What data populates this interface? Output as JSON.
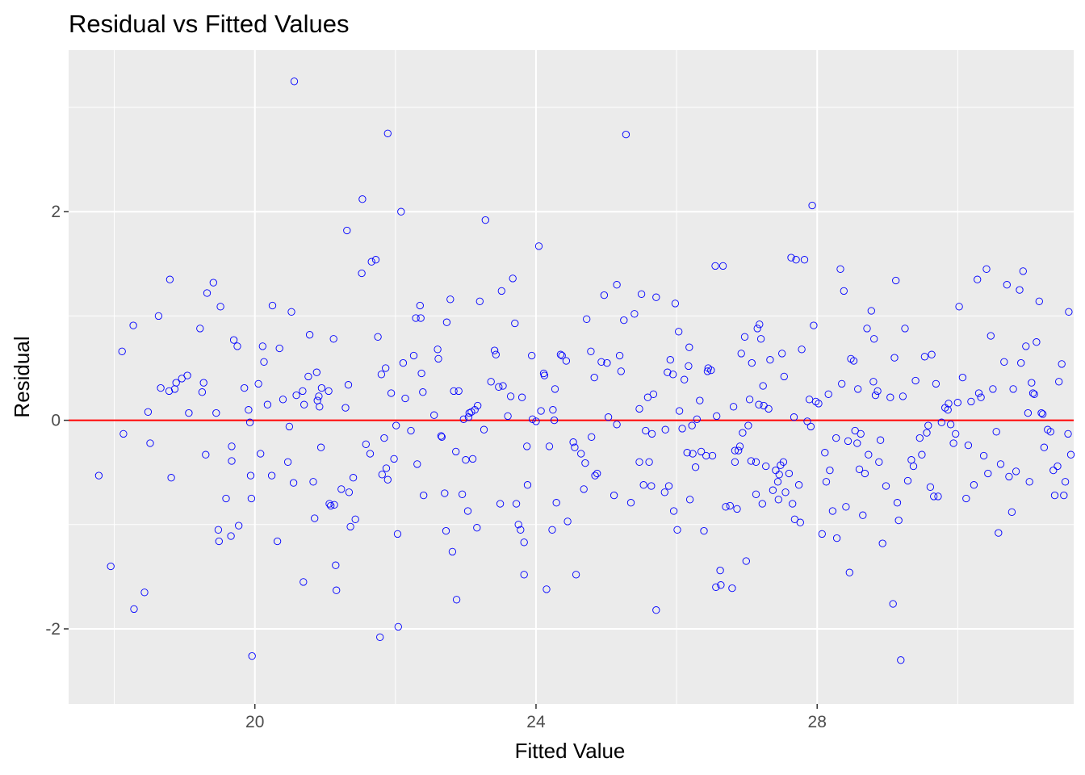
{
  "chart_data": {
    "type": "scatter",
    "title": "Residual vs Fitted Values",
    "xlabel": "Fitted Value",
    "ylabel": "Residual",
    "xlim": [
      17.35,
      31.65
    ],
    "ylim": [
      -2.72,
      3.55
    ],
    "x_ticks": [
      20,
      24,
      28
    ],
    "x_tick_labels": [
      "20",
      "24",
      "28"
    ],
    "y_ticks": [
      -2,
      0,
      2
    ],
    "y_tick_labels": [
      "-2",
      "0",
      "2"
    ],
    "grid": true,
    "reference_line": {
      "y": 0,
      "color": "#ff0000"
    },
    "point_color": "#0000ff",
    "panel_color": "#ebebeb",
    "points": [
      [
        17.78,
        -0.53
      ],
      [
        17.95,
        -1.4
      ],
      [
        18.11,
        0.66
      ],
      [
        18.13,
        -0.13
      ],
      [
        18.27,
        0.91
      ],
      [
        18.28,
        -1.81
      ],
      [
        18.43,
        -1.65
      ],
      [
        18.48,
        0.08
      ],
      [
        18.51,
        -0.22
      ],
      [
        18.63,
        1.0
      ],
      [
        18.66,
        0.31
      ],
      [
        18.78,
        0.28
      ],
      [
        18.79,
        1.35
      ],
      [
        18.81,
        -0.55
      ],
      [
        18.86,
        0.3
      ],
      [
        18.88,
        0.36
      ],
      [
        18.96,
        0.4
      ],
      [
        19.04,
        0.43
      ],
      [
        19.06,
        0.07
      ],
      [
        19.22,
        0.88
      ],
      [
        19.25,
        0.27
      ],
      [
        19.27,
        0.36
      ],
      [
        19.3,
        -0.33
      ],
      [
        19.32,
        1.22
      ],
      [
        19.41,
        1.32
      ],
      [
        19.45,
        0.07
      ],
      [
        19.48,
        -1.05
      ],
      [
        19.49,
        -1.16
      ],
      [
        19.51,
        1.09
      ],
      [
        19.59,
        -0.75
      ],
      [
        19.66,
        -1.11
      ],
      [
        19.67,
        -0.25
      ],
      [
        19.67,
        -0.39
      ],
      [
        19.7,
        0.77
      ],
      [
        19.75,
        0.71
      ],
      [
        19.77,
        -1.01
      ],
      [
        19.85,
        0.31
      ],
      [
        19.91,
        0.1
      ],
      [
        19.93,
        -0.02
      ],
      [
        19.94,
        -0.53
      ],
      [
        19.95,
        -0.75
      ],
      [
        19.96,
        -2.26
      ],
      [
        20.05,
        0.35
      ],
      [
        20.08,
        -0.32
      ],
      [
        20.11,
        0.71
      ],
      [
        20.13,
        0.56
      ],
      [
        20.18,
        0.15
      ],
      [
        20.24,
        -0.53
      ],
      [
        20.25,
        1.1
      ],
      [
        20.32,
        -1.16
      ],
      [
        20.35,
        0.69
      ],
      [
        20.4,
        0.2
      ],
      [
        20.47,
        -0.4
      ],
      [
        20.49,
        -0.06
      ],
      [
        20.52,
        1.04
      ],
      [
        20.55,
        -0.6
      ],
      [
        20.56,
        3.25
      ],
      [
        20.59,
        0.24
      ],
      [
        20.68,
        0.28
      ],
      [
        20.69,
        -1.55
      ],
      [
        20.7,
        0.15
      ],
      [
        20.76,
        0.42
      ],
      [
        20.78,
        0.82
      ],
      [
        20.83,
        -0.59
      ],
      [
        20.85,
        -0.94
      ],
      [
        20.88,
        0.46
      ],
      [
        20.89,
        0.19
      ],
      [
        20.91,
        0.23
      ],
      [
        20.92,
        0.13
      ],
      [
        20.94,
        -0.26
      ],
      [
        20.95,
        0.31
      ],
      [
        21.05,
        0.28
      ],
      [
        21.06,
        -0.8
      ],
      [
        21.08,
        -0.82
      ],
      [
        21.12,
        0.78
      ],
      [
        21.13,
        -0.81
      ],
      [
        21.15,
        -1.39
      ],
      [
        21.16,
        -1.63
      ],
      [
        21.23,
        -0.66
      ],
      [
        21.29,
        0.12
      ],
      [
        21.31,
        1.82
      ],
      [
        21.33,
        0.34
      ],
      [
        21.34,
        -0.69
      ],
      [
        21.36,
        -1.02
      ],
      [
        21.4,
        -0.55
      ],
      [
        21.43,
        -0.95
      ],
      [
        21.52,
        1.41
      ],
      [
        21.53,
        2.12
      ],
      [
        21.58,
        -0.23
      ],
      [
        21.64,
        -0.32
      ],
      [
        21.66,
        1.52
      ],
      [
        21.72,
        1.54
      ],
      [
        21.75,
        0.8
      ],
      [
        21.78,
        -2.08
      ],
      [
        21.8,
        0.44
      ],
      [
        21.81,
        -0.52
      ],
      [
        21.84,
        -0.17
      ],
      [
        21.86,
        0.5
      ],
      [
        21.87,
        -0.46
      ],
      [
        21.89,
        2.75
      ],
      [
        21.89,
        -0.57
      ],
      [
        21.94,
        0.26
      ],
      [
        21.98,
        -0.37
      ],
      [
        22.01,
        -0.05
      ],
      [
        22.03,
        -1.09
      ],
      [
        22.04,
        -1.98
      ],
      [
        22.08,
        2.0
      ],
      [
        22.11,
        0.55
      ],
      [
        22.14,
        0.21
      ],
      [
        22.22,
        -0.1
      ],
      [
        22.26,
        0.62
      ],
      [
        22.29,
        0.98
      ],
      [
        22.31,
        -0.42
      ],
      [
        22.35,
        1.1
      ],
      [
        22.36,
        0.98
      ],
      [
        22.37,
        0.45
      ],
      [
        22.39,
        0.27
      ],
      [
        22.4,
        -0.72
      ],
      [
        22.55,
        0.05
      ],
      [
        22.6,
        0.68
      ],
      [
        22.61,
        0.59
      ],
      [
        22.65,
        -0.15
      ],
      [
        22.66,
        -0.16
      ],
      [
        22.7,
        -0.7
      ],
      [
        22.72,
        -1.06
      ],
      [
        22.73,
        0.94
      ],
      [
        22.78,
        1.16
      ],
      [
        22.81,
        -1.26
      ],
      [
        22.83,
        0.28
      ],
      [
        22.86,
        -0.3
      ],
      [
        22.87,
        -1.72
      ],
      [
        22.9,
        0.28
      ],
      [
        22.95,
        -0.71
      ],
      [
        22.97,
        0.01
      ],
      [
        23.0,
        -0.38
      ],
      [
        23.03,
        -0.87
      ],
      [
        23.04,
        0.03
      ],
      [
        23.05,
        0.07
      ],
      [
        23.08,
        0.08
      ],
      [
        23.1,
        -0.37
      ],
      [
        23.13,
        0.1
      ],
      [
        23.16,
        -1.03
      ],
      [
        23.17,
        0.14
      ],
      [
        23.2,
        1.14
      ],
      [
        23.26,
        -0.09
      ],
      [
        23.28,
        1.92
      ],
      [
        23.36,
        0.37
      ],
      [
        23.41,
        0.67
      ],
      [
        23.43,
        0.63
      ],
      [
        23.47,
        0.32
      ],
      [
        23.49,
        -0.8
      ],
      [
        23.51,
        1.24
      ],
      [
        23.53,
        0.33
      ],
      [
        23.6,
        0.04
      ],
      [
        23.64,
        0.23
      ],
      [
        23.67,
        1.36
      ],
      [
        23.7,
        0.93
      ],
      [
        23.72,
        -0.8
      ],
      [
        23.75,
        -1.0
      ],
      [
        23.78,
        -1.05
      ],
      [
        23.8,
        0.22
      ],
      [
        23.83,
        -1.17
      ],
      [
        23.83,
        -1.48
      ],
      [
        23.87,
        -0.25
      ],
      [
        23.88,
        -0.62
      ],
      [
        23.94,
        0.62
      ],
      [
        23.95,
        0.01
      ],
      [
        24.0,
        -0.01
      ],
      [
        24.04,
        1.67
      ],
      [
        24.07,
        0.09
      ],
      [
        24.11,
        0.45
      ],
      [
        24.12,
        0.43
      ],
      [
        24.15,
        -1.62
      ],
      [
        24.19,
        -0.25
      ],
      [
        24.23,
        -1.05
      ],
      [
        24.24,
        0.1
      ],
      [
        24.26,
        0.0
      ],
      [
        24.27,
        0.3
      ],
      [
        24.29,
        -0.79
      ],
      [
        24.35,
        0.63
      ],
      [
        24.37,
        0.62
      ],
      [
        24.43,
        0.57
      ],
      [
        24.45,
        -0.97
      ],
      [
        24.53,
        -0.21
      ],
      [
        24.55,
        -0.26
      ],
      [
        24.57,
        -1.48
      ],
      [
        24.64,
        -0.32
      ],
      [
        24.68,
        -0.66
      ],
      [
        24.7,
        -0.41
      ],
      [
        24.72,
        0.97
      ],
      [
        24.78,
        0.66
      ],
      [
        24.79,
        -0.16
      ],
      [
        24.83,
        0.41
      ],
      [
        24.84,
        -0.53
      ],
      [
        24.87,
        -0.51
      ],
      [
        24.93,
        0.56
      ],
      [
        24.97,
        1.2
      ],
      [
        25.01,
        0.55
      ],
      [
        25.03,
        0.03
      ],
      [
        25.11,
        -0.72
      ],
      [
        25.15,
        1.3
      ],
      [
        25.15,
        -0.04
      ],
      [
        25.19,
        0.62
      ],
      [
        25.21,
        0.47
      ],
      [
        25.25,
        0.96
      ],
      [
        25.28,
        2.74
      ],
      [
        25.35,
        -0.79
      ],
      [
        25.4,
        1.02
      ],
      [
        25.47,
        0.11
      ],
      [
        25.47,
        -0.4
      ],
      [
        25.5,
        1.21
      ],
      [
        25.53,
        -0.62
      ],
      [
        25.56,
        -0.1
      ],
      [
        25.59,
        0.22
      ],
      [
        25.61,
        -0.4
      ],
      [
        25.64,
        -0.63
      ],
      [
        25.65,
        -0.13
      ],
      [
        25.67,
        0.25
      ],
      [
        25.71,
        -1.82
      ],
      [
        25.71,
        1.18
      ],
      [
        25.83,
        -0.69
      ],
      [
        25.84,
        -0.09
      ],
      [
        25.87,
        0.46
      ],
      [
        25.89,
        -0.63
      ],
      [
        25.91,
        0.58
      ],
      [
        25.95,
        0.44
      ],
      [
        25.96,
        -0.87
      ],
      [
        25.98,
        1.12
      ],
      [
        26.01,
        -1.05
      ],
      [
        26.03,
        0.85
      ],
      [
        26.04,
        0.09
      ],
      [
        26.08,
        -0.08
      ],
      [
        26.11,
        0.39
      ],
      [
        26.15,
        -0.31
      ],
      [
        26.17,
        0.52
      ],
      [
        26.18,
        0.7
      ],
      [
        26.19,
        -0.76
      ],
      [
        26.22,
        -0.05
      ],
      [
        26.23,
        -0.32
      ],
      [
        26.27,
        -0.45
      ],
      [
        26.29,
        0.01
      ],
      [
        26.33,
        0.19
      ],
      [
        26.35,
        -0.3
      ],
      [
        26.39,
        -1.06
      ],
      [
        26.42,
        -0.34
      ],
      [
        26.44,
        0.47
      ],
      [
        26.45,
        0.5
      ],
      [
        26.49,
        0.48
      ],
      [
        26.51,
        -0.34
      ],
      [
        26.55,
        1.48
      ],
      [
        26.56,
        -1.6
      ],
      [
        26.57,
        0.04
      ],
      [
        26.62,
        -1.44
      ],
      [
        26.63,
        -1.58
      ],
      [
        26.66,
        1.48
      ],
      [
        26.7,
        -0.83
      ],
      [
        26.76,
        -0.82
      ],
      [
        26.79,
        -1.61
      ],
      [
        26.81,
        0.13
      ],
      [
        26.83,
        -0.4
      ],
      [
        26.83,
        -0.29
      ],
      [
        26.86,
        -0.85
      ],
      [
        26.88,
        -0.29
      ],
      [
        26.9,
        -0.25
      ],
      [
        26.92,
        0.64
      ],
      [
        26.94,
        -0.12
      ],
      [
        26.97,
        0.8
      ],
      [
        26.99,
        -1.35
      ],
      [
        27.02,
        -0.05
      ],
      [
        27.04,
        0.2
      ],
      [
        27.06,
        -0.39
      ],
      [
        27.07,
        0.55
      ],
      [
        27.13,
        -0.71
      ],
      [
        27.13,
        -0.4
      ],
      [
        27.15,
        0.88
      ],
      [
        27.17,
        0.15
      ],
      [
        27.18,
        0.92
      ],
      [
        27.2,
        0.78
      ],
      [
        27.22,
        -0.8
      ],
      [
        27.23,
        0.33
      ],
      [
        27.24,
        0.14
      ],
      [
        27.27,
        -0.44
      ],
      [
        27.31,
        0.11
      ],
      [
        27.33,
        0.58
      ],
      [
        27.37,
        -0.67
      ],
      [
        27.41,
        -0.48
      ],
      [
        27.44,
        -0.59
      ],
      [
        27.45,
        -0.76
      ],
      [
        27.46,
        -0.52
      ],
      [
        27.48,
        -0.43
      ],
      [
        27.5,
        0.64
      ],
      [
        27.52,
        -0.4
      ],
      [
        27.53,
        0.42
      ],
      [
        27.55,
        -0.69
      ],
      [
        27.6,
        -0.51
      ],
      [
        27.63,
        1.56
      ],
      [
        27.65,
        -0.8
      ],
      [
        27.67,
        0.03
      ],
      [
        27.68,
        -0.95
      ],
      [
        27.7,
        1.54
      ],
      [
        27.74,
        -0.62
      ],
      [
        27.76,
        -0.98
      ],
      [
        27.78,
        0.68
      ],
      [
        27.82,
        1.54
      ],
      [
        27.86,
        -0.01
      ],
      [
        27.89,
        0.2
      ],
      [
        27.91,
        -0.06
      ],
      [
        27.93,
        2.06
      ],
      [
        27.95,
        0.91
      ],
      [
        27.98,
        0.18
      ],
      [
        28.02,
        0.16
      ],
      [
        28.07,
        -1.09
      ],
      [
        28.11,
        -0.31
      ],
      [
        28.13,
        -0.59
      ],
      [
        28.16,
        0.25
      ],
      [
        28.18,
        -0.48
      ],
      [
        28.22,
        -0.87
      ],
      [
        28.27,
        -0.17
      ],
      [
        28.28,
        -1.13
      ],
      [
        28.33,
        1.45
      ],
      [
        28.35,
        0.35
      ],
      [
        28.38,
        1.24
      ],
      [
        28.41,
        -0.83
      ],
      [
        28.44,
        -0.2
      ],
      [
        28.46,
        -1.46
      ],
      [
        28.48,
        0.59
      ],
      [
        28.52,
        0.57
      ],
      [
        28.54,
        -0.1
      ],
      [
        28.57,
        -0.22
      ],
      [
        28.58,
        0.3
      ],
      [
        28.6,
        -0.47
      ],
      [
        28.62,
        -0.13
      ],
      [
        28.65,
        -0.91
      ],
      [
        28.68,
        -0.51
      ],
      [
        28.71,
        0.88
      ],
      [
        28.73,
        -0.33
      ],
      [
        28.77,
        1.05
      ],
      [
        28.8,
        0.37
      ],
      [
        28.81,
        0.78
      ],
      [
        28.83,
        0.24
      ],
      [
        28.86,
        0.28
      ],
      [
        28.88,
        -0.4
      ],
      [
        28.9,
        -0.19
      ],
      [
        28.93,
        -1.18
      ],
      [
        28.98,
        -0.63
      ],
      [
        29.04,
        0.22
      ],
      [
        29.08,
        -1.76
      ],
      [
        29.1,
        0.6
      ],
      [
        29.12,
        1.34
      ],
      [
        29.14,
        -0.79
      ],
      [
        29.16,
        -0.96
      ],
      [
        29.19,
        -2.3
      ],
      [
        29.22,
        0.23
      ],
      [
        29.25,
        0.88
      ],
      [
        29.29,
        -0.58
      ],
      [
        29.34,
        -0.38
      ],
      [
        29.37,
        -0.44
      ],
      [
        29.4,
        0.38
      ],
      [
        29.46,
        -0.17
      ],
      [
        29.49,
        -0.33
      ],
      [
        29.53,
        0.61
      ],
      [
        29.56,
        -0.12
      ],
      [
        29.58,
        -0.05
      ],
      [
        29.61,
        -0.64
      ],
      [
        29.63,
        0.63
      ],
      [
        29.66,
        -0.73
      ],
      [
        29.69,
        0.35
      ],
      [
        29.72,
        -0.73
      ],
      [
        29.77,
        -0.02
      ],
      [
        29.82,
        0.12
      ],
      [
        29.86,
        0.1
      ],
      [
        29.87,
        0.16
      ],
      [
        29.9,
        -0.04
      ],
      [
        29.94,
        -0.22
      ],
      [
        29.97,
        -0.13
      ],
      [
        30.0,
        0.17
      ],
      [
        30.02,
        1.09
      ],
      [
        30.07,
        0.41
      ],
      [
        30.12,
        -0.75
      ],
      [
        30.15,
        -0.24
      ],
      [
        30.19,
        0.18
      ],
      [
        30.23,
        -0.62
      ],
      [
        30.28,
        1.35
      ],
      [
        30.3,
        0.26
      ],
      [
        30.33,
        0.22
      ],
      [
        30.37,
        -0.34
      ],
      [
        30.41,
        1.45
      ],
      [
        30.43,
        -0.51
      ],
      [
        30.47,
        0.81
      ],
      [
        30.5,
        0.3
      ],
      [
        30.55,
        -0.11
      ],
      [
        30.58,
        -1.08
      ],
      [
        30.61,
        -0.42
      ],
      [
        30.66,
        0.56
      ],
      [
        30.7,
        1.3
      ],
      [
        30.73,
        -0.54
      ],
      [
        30.77,
        -0.88
      ],
      [
        30.79,
        0.3
      ],
      [
        30.83,
        -0.49
      ],
      [
        30.88,
        1.25
      ],
      [
        30.9,
        0.55
      ],
      [
        30.93,
        1.43
      ],
      [
        30.97,
        0.71
      ],
      [
        31.0,
        0.07
      ],
      [
        31.02,
        -0.59
      ],
      [
        31.05,
        0.36
      ],
      [
        31.07,
        0.26
      ],
      [
        31.09,
        0.25
      ],
      [
        31.12,
        0.75
      ],
      [
        31.16,
        1.14
      ],
      [
        31.19,
        0.07
      ],
      [
        31.21,
        0.06
      ],
      [
        31.23,
        -0.26
      ],
      [
        31.28,
        -0.09
      ],
      [
        31.32,
        -0.11
      ],
      [
        31.36,
        -0.48
      ],
      [
        31.38,
        -0.72
      ],
      [
        31.42,
        -0.44
      ],
      [
        31.44,
        0.37
      ],
      [
        31.48,
        0.54
      ],
      [
        31.51,
        -0.72
      ],
      [
        31.53,
        -0.59
      ],
      [
        31.57,
        -0.13
      ],
      [
        31.58,
        1.04
      ],
      [
        31.61,
        -0.33
      ]
    ]
  }
}
